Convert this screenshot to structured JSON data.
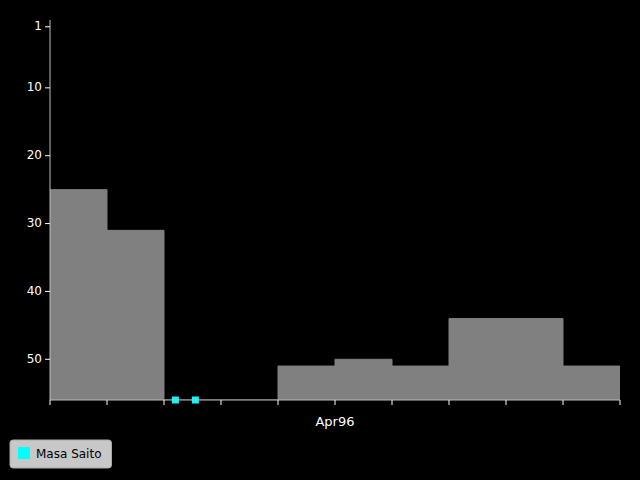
{
  "chart_data": {
    "type": "area",
    "x_label": "Apr96",
    "series": [
      {
        "type": "area",
        "color": "#808080",
        "x": [
          0,
          1,
          1,
          2,
          2,
          3,
          3,
          4,
          4,
          5,
          5,
          6,
          6,
          7,
          7,
          8,
          8,
          9,
          9,
          10
        ],
        "values": [
          25,
          25,
          31,
          31,
          56,
          56,
          56,
          56,
          51,
          51,
          50,
          50,
          51,
          51,
          44,
          44,
          44,
          44,
          51,
          51
        ]
      },
      {
        "type": "scatter",
        "name": "Masa Saito",
        "color": "#00ffff",
        "marker": "square",
        "x": [
          2.2,
          2.55
        ],
        "values": [
          56,
          56
        ]
      }
    ],
    "xlim": [
      0,
      10
    ],
    "xticks": [
      0,
      1,
      2,
      3,
      4,
      5,
      6,
      7,
      8,
      9,
      10
    ],
    "ylim": [
      56,
      0
    ],
    "yticks": [
      1,
      10,
      20,
      30,
      40,
      50
    ],
    "tick_labels": "y",
    "grid": false,
    "legend": "lower left"
  }
}
